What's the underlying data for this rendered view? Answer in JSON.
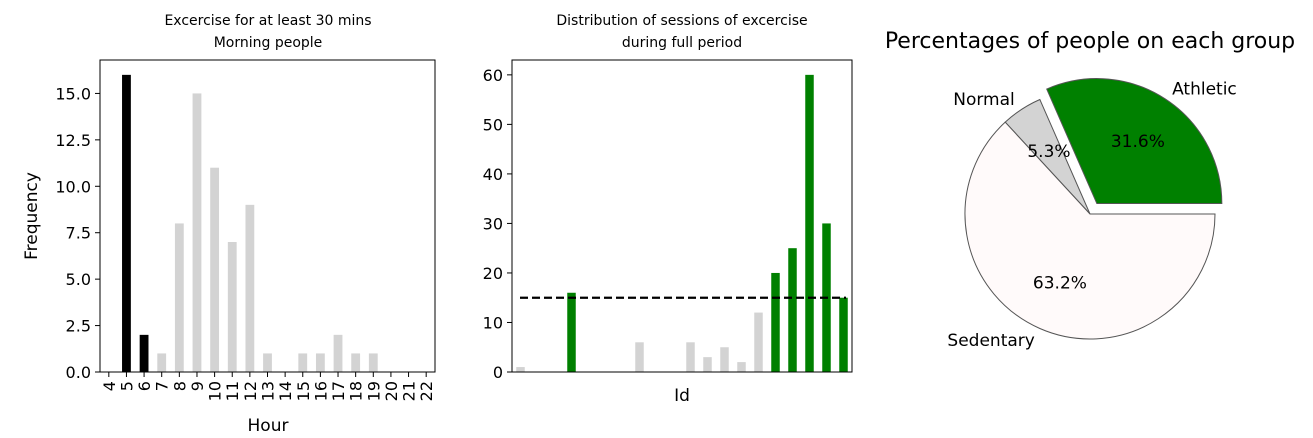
{
  "chart_data": [
    {
      "type": "bar",
      "title": "Excercise for at least 30 mins\nMorning people",
      "xlabel": "Hour",
      "ylabel": "Frequency",
      "categories": [
        "4",
        "5",
        "6",
        "7",
        "8",
        "9",
        "10",
        "11",
        "12",
        "13",
        "14",
        "15",
        "16",
        "17",
        "18",
        "19",
        "20",
        "21",
        "22"
      ],
      "values": [
        0,
        16,
        2,
        1,
        8,
        15,
        11,
        7,
        9,
        1,
        0,
        1,
        1,
        2,
        1,
        1,
        0,
        0,
        0
      ],
      "bar_colors": [
        "#d3d3d3",
        "#000000",
        "#000000",
        "#d3d3d3",
        "#d3d3d3",
        "#d3d3d3",
        "#d3d3d3",
        "#d3d3d3",
        "#d3d3d3",
        "#d3d3d3",
        "#d3d3d3",
        "#d3d3d3",
        "#d3d3d3",
        "#d3d3d3",
        "#d3d3d3",
        "#d3d3d3",
        "#d3d3d3",
        "#d3d3d3",
        "#d3d3d3"
      ],
      "ylim": [
        0,
        16.8
      ],
      "yticks": [
        "0.0",
        "2.5",
        "5.0",
        "7.5",
        "10.0",
        "12.5",
        "15.0"
      ],
      "grid": false
    },
    {
      "type": "bar",
      "title": "Distribution of sessions of excercise\nduring full period",
      "xlabel": "Id",
      "ylabel": "",
      "values": [
        1,
        0,
        0,
        16,
        0,
        0,
        0,
        6,
        0,
        0,
        6,
        3,
        5,
        2,
        12,
        20,
        25,
        60,
        30,
        15
      ],
      "bar_colors": [
        "#d3d3d3",
        "#d3d3d3",
        "#d3d3d3",
        "#008000",
        "#d3d3d3",
        "#d3d3d3",
        "#d3d3d3",
        "#d3d3d3",
        "#d3d3d3",
        "#d3d3d3",
        "#d3d3d3",
        "#d3d3d3",
        "#d3d3d3",
        "#d3d3d3",
        "#d3d3d3",
        "#008000",
        "#008000",
        "#008000",
        "#008000",
        "#008000"
      ],
      "reference_line": {
        "y": 15,
        "style": "dashed",
        "color": "#000000"
      },
      "ylim": [
        0,
        63
      ],
      "yticks": [
        "0",
        "10",
        "20",
        "30",
        "40",
        "50",
        "60"
      ],
      "grid": false
    },
    {
      "type": "pie",
      "title": "Percentages of people on each group",
      "slices": [
        {
          "label": "Athletic",
          "value": 31.6,
          "pct_label": "31.6%",
          "color": "#008000",
          "exploded": true
        },
        {
          "label": "Normal",
          "value": 5.3,
          "pct_label": "5.3%",
          "color": "#d3d3d3",
          "exploded": false
        },
        {
          "label": "Sedentary",
          "value": 63.2,
          "pct_label": "63.2%",
          "color": "#fffafa",
          "exploded": false
        }
      ],
      "start_angle_deg": 0,
      "edge_color": "#555555"
    }
  ]
}
